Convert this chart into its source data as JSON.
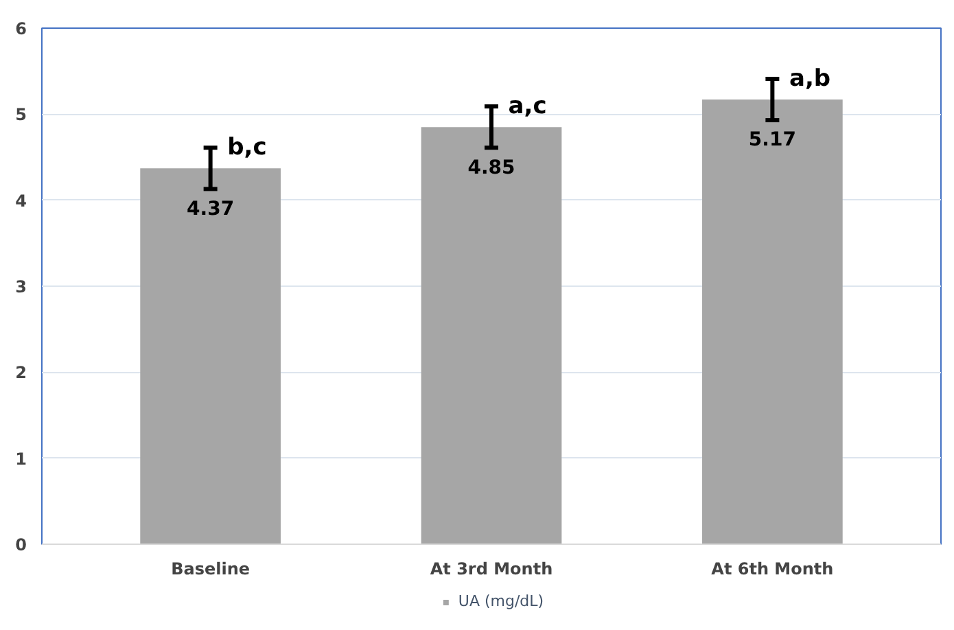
{
  "chart_data": {
    "type": "bar",
    "categories": [
      "Baseline",
      "At 3rd Month",
      "At 6th Month"
    ],
    "series": [
      {
        "name": "UA (mg/dL)",
        "color": "#a6a6a6",
        "values": [
          4.37,
          4.85,
          5.17
        ],
        "errors": [
          0.24,
          0.24,
          0.24
        ]
      }
    ],
    "ylim": [
      0,
      6
    ],
    "yticks": [
      0,
      1,
      2,
      3,
      4,
      5,
      6
    ],
    "grid": "y",
    "legend": "bottom",
    "data_labels": true,
    "annotations": [
      {
        "text": "b,c",
        "x": "Baseline",
        "y": 4.61
      },
      {
        "text": "a,c",
        "x": "At 3rd Month",
        "y": 5.09
      },
      {
        "text": "a,b",
        "x": "At 6th Month",
        "y": 5.41
      }
    ]
  }
}
